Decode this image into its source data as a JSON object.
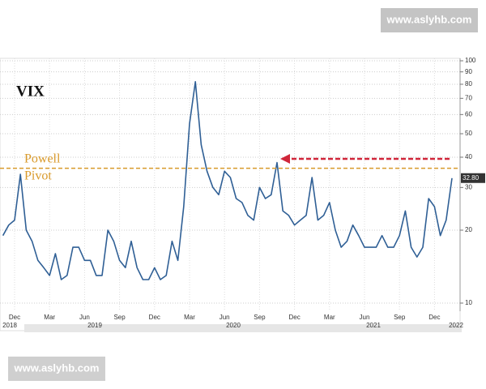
{
  "chart_data": {
    "type": "line",
    "title": "VIX",
    "categories": [
      null,
      null,
      "Dec",
      null,
      null,
      null,
      null,
      null,
      "Mar",
      null,
      null,
      null,
      null,
      null,
      "Jun",
      null,
      null,
      null,
      null,
      null,
      "Sep",
      null,
      null,
      null,
      null,
      null,
      "Dec",
      null,
      null,
      null,
      null,
      null,
      "Mar",
      null,
      null,
      null,
      null,
      null,
      "Jun",
      null,
      null,
      null,
      null,
      null,
      "Sep",
      null,
      null,
      null,
      null,
      null,
      "Dec",
      null,
      null,
      null,
      null,
      null,
      "Mar",
      null,
      null,
      null,
      null,
      null,
      "Jun",
      null,
      null,
      null,
      null,
      null,
      "Sep",
      null,
      null,
      null,
      null,
      null,
      "Dec",
      null,
      null,
      null
    ],
    "x_group_labels": [
      "2018",
      "2019",
      "2020",
      "2021",
      "2022"
    ],
    "values": [
      19,
      21,
      22,
      34,
      20,
      18,
      15,
      14,
      13,
      16,
      12.5,
      13,
      17,
      17,
      15,
      15,
      13,
      13,
      20,
      18,
      15,
      14,
      18,
      14,
      12.5,
      12.5,
      14,
      12.5,
      13,
      18,
      15,
      25,
      55,
      82,
      45,
      35,
      30,
      28,
      35,
      33,
      27,
      26,
      23,
      22,
      30,
      27,
      28,
      38,
      24,
      23,
      21,
      22,
      23,
      33,
      22,
      23,
      26,
      20,
      17,
      18,
      21,
      19,
      17,
      17,
      17,
      19,
      17,
      17,
      19,
      24,
      17,
      15.5,
      17,
      27,
      25,
      19,
      22,
      32.8
    ],
    "value_labels": [
      null,
      null,
      null,
      null,
      null,
      null,
      null,
      null,
      null,
      null,
      null,
      null,
      null,
      null,
      null,
      null,
      null,
      null,
      null,
      null,
      null,
      null,
      null,
      null,
      null,
      null,
      null,
      null,
      null,
      null,
      null,
      null,
      null,
      null,
      null,
      null,
      null,
      null,
      null,
      null,
      null,
      null,
      null,
      null,
      null,
      null,
      null,
      null,
      null,
      null,
      null,
      null,
      null,
      null,
      null,
      null,
      null,
      null,
      null,
      null,
      null,
      null,
      null,
      null,
      null,
      null,
      null,
      null,
      null,
      null,
      null,
      null,
      null,
      null,
      null,
      null,
      null,
      "32.80"
    ],
    "color": "#2f5f95",
    "log_scale": true,
    "ylim": [
      10,
      100
    ],
    "yticks": [
      10,
      20,
      30,
      40,
      50,
      60,
      70,
      80,
      90,
      100
    ],
    "grid": true,
    "annotation": {
      "lines": [
        "Powell",
        "Pivot"
      ],
      "level": 36,
      "color": "#d99a2b"
    }
  },
  "watermarks": [
    "www.aslyhb.com",
    "www.aslyhb.com"
  ]
}
